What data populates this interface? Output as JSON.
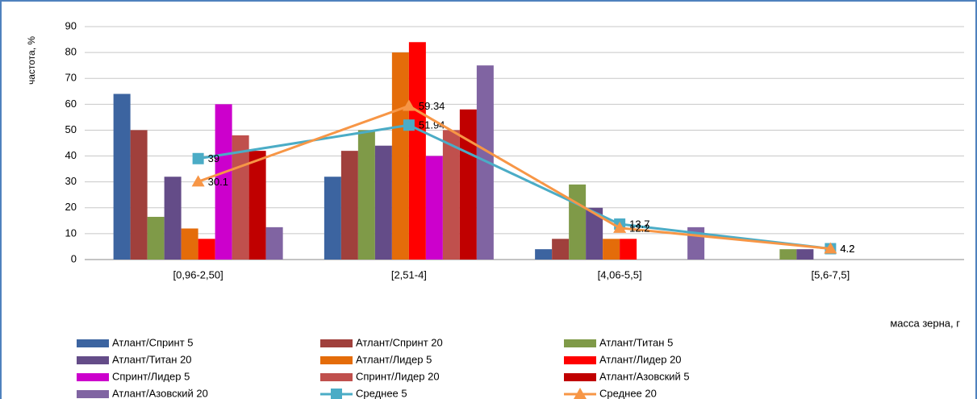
{
  "chart_data": {
    "type": "bar",
    "y_label": "частота, %",
    "x_label": "масса зерна, г",
    "categories": [
      "[0,96-2,50]",
      "[2,51-4]",
      "[4,06-5,5]",
      "[5,6-7,5]"
    ],
    "ylim": [
      0,
      90
    ],
    "yticks": [
      0,
      10,
      20,
      30,
      40,
      50,
      60,
      70,
      80,
      90
    ],
    "grid": true,
    "series": [
      {
        "name": "Атлант/Спринт 5",
        "color": "#3c64a0",
        "values": [
          64,
          32,
          4,
          0
        ]
      },
      {
        "name": "Атлант/Спринт 20",
        "color": "#a0403c",
        "values": [
          50,
          42,
          8,
          0
        ]
      },
      {
        "name": "Атлант/Титан 5",
        "color": "#7f9a48",
        "values": [
          16.5,
          50,
          29,
          4
        ]
      },
      {
        "name": "Атлант/Титан 20",
        "color": "#644c88",
        "values": [
          32,
          44,
          20,
          4
        ]
      },
      {
        "name": "Атлант/Лидер 5",
        "color": "#e46c0a",
        "values": [
          12,
          80,
          8,
          0
        ]
      },
      {
        "name": "Атлант/Лидер 20",
        "color": "#ff0000",
        "values": [
          8,
          84,
          8,
          0
        ]
      },
      {
        "name": "Спринт/Лидер 5",
        "color": "#cc00cc",
        "values": [
          60,
          40,
          0,
          0
        ]
      },
      {
        "name": "Спринт/Лидер 20",
        "color": "#c0504d",
        "values": [
          48,
          50,
          0,
          0
        ]
      },
      {
        "name": "Атлант/Азовский 5",
        "color": "#c00000",
        "values": [
          42,
          58,
          0,
          0
        ]
      },
      {
        "name": "Атлант/Азовский 20",
        "color": "#8064a2",
        "values": [
          12.5,
          75,
          12.5,
          0
        ]
      },
      {
        "name": "Среднее 5",
        "color": "#4bacc6",
        "type": "line",
        "marker": "square",
        "values": [
          39,
          51.94,
          13.7,
          4.2
        ]
      },
      {
        "name": "Среднее 20",
        "color": "#f79646",
        "type": "line",
        "marker": "triangle",
        "values": [
          30.1,
          59.34,
          12.2,
          4.2
        ]
      }
    ]
  }
}
